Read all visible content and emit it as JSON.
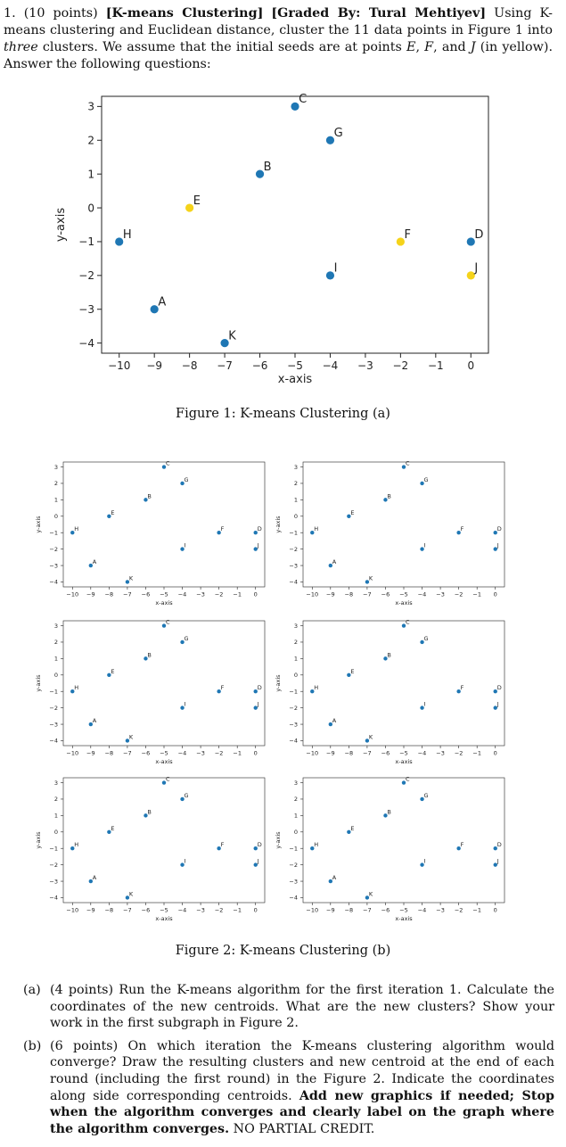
{
  "problem": {
    "number": "1.",
    "points": "(10 points)",
    "topic": "[K-means Clustering]",
    "grader": "[Graded By: Tural Mehtiyev]",
    "text_1": "Using K-means clustering and Euclidean distance, cluster the 11 data points in Figure 1 into ",
    "three": "three",
    "text_2": " clusters. We assume that the initial seeds are at points ",
    "seed_E": "E",
    "sep1": ", ",
    "seed_F": "F",
    "sep2": ", and ",
    "seed_J": "J",
    "text_3": " (in yellow). Answer the following questions:"
  },
  "figure1": {
    "caption": "Figure 1: K-means Clustering (a)"
  },
  "figure2": {
    "caption": "Figure 2: K-means Clustering (b)"
  },
  "chart_data": {
    "type": "scatter",
    "xlabel": "x-axis",
    "ylabel": "y-axis",
    "xlim": [
      -10.5,
      0.5
    ],
    "ylim": [
      -4.3,
      3.3
    ],
    "xticks": [
      -10,
      -9,
      -8,
      -7,
      -6,
      -5,
      -4,
      -3,
      -2,
      -1,
      0
    ],
    "yticks": [
      3,
      2,
      1,
      0,
      -1,
      -2,
      -3,
      -4
    ],
    "points": [
      {
        "label": "A",
        "x": -9,
        "y": -3,
        "seed": false
      },
      {
        "label": "B",
        "x": -6,
        "y": 1,
        "seed": false
      },
      {
        "label": "C",
        "x": -5,
        "y": 3,
        "seed": false
      },
      {
        "label": "D",
        "x": 0,
        "y": -1,
        "seed": false
      },
      {
        "label": "E",
        "x": -8,
        "y": 0,
        "seed": true
      },
      {
        "label": "F",
        "x": -2,
        "y": -1,
        "seed": true
      },
      {
        "label": "G",
        "x": -4,
        "y": 2,
        "seed": false
      },
      {
        "label": "H",
        "x": -10,
        "y": -1,
        "seed": false
      },
      {
        "label": "I",
        "x": -4,
        "y": -2,
        "seed": false
      },
      {
        "label": "J",
        "x": 0,
        "y": -2,
        "seed": true
      },
      {
        "label": "K",
        "x": -7,
        "y": -4,
        "seed": false
      }
    ],
    "colors": {
      "point": "#1f77b4",
      "seed": "#f5d31a"
    }
  },
  "questions": {
    "a": {
      "label": "(a)",
      "text": "(4 points) Run the K-means algorithm for the first iteration 1. Calculate the coordinates of the new centroids. What are the new clusters? Show your work in the first subgraph in Figure 2."
    },
    "b": {
      "label": "(b)",
      "text": "(6 points) On which iteration the K-means clustering algorithm would converge? Draw the resulting clusters and new centroid at the end of each round (including the first round) in the Figure 2. Indicate the coordinates along side corresponding centroids. ",
      "bold": "Add new graphics if needed; Stop when the algorithm converges and clearly label on the graph where the algorithm converges.",
      "tail": " NO PARTIAL CREDIT."
    }
  }
}
